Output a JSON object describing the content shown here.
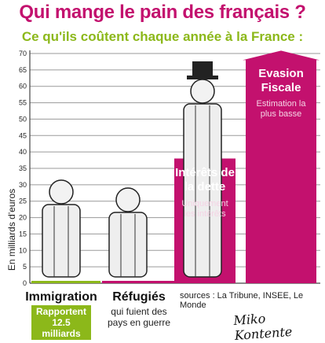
{
  "title": "Qui mange le pain des français ?",
  "subtitle": "Ce qu'ils coûtent chaque année à la France :",
  "chart_data": {
    "type": "bar",
    "ylabel": "En milliards d'euros",
    "ylim": [
      0,
      70
    ],
    "yticks": [
      0,
      5,
      10,
      15,
      20,
      25,
      30,
      35,
      40,
      45,
      50,
      55,
      60,
      65,
      70
    ],
    "grid": true,
    "categories": [
      "Immigration",
      "Réfugiés",
      "Intérêts de la dette",
      "Evasion Fiscale"
    ],
    "values": [
      0.6,
      0.6,
      38,
      68
    ],
    "colors": [
      "#8cb81a",
      "#c3116e",
      "#c3116e",
      "#c3116e"
    ],
    "bar_labels": [
      {
        "title": "Immigration",
        "sub": "Rapportent 12.5 milliards"
      },
      {
        "title": "Réfugiés",
        "sub": "qui fuient des pays en guerre"
      },
      {
        "title": "Intérêts de la dette",
        "sub": "Uniquement les intérêts"
      },
      {
        "title": "Evasion Fiscale",
        "sub": "Estimation la plus basse"
      }
    ]
  },
  "sources": "sources : La Tribune, INSEE, Le Monde",
  "signature": "Miko Kontente"
}
